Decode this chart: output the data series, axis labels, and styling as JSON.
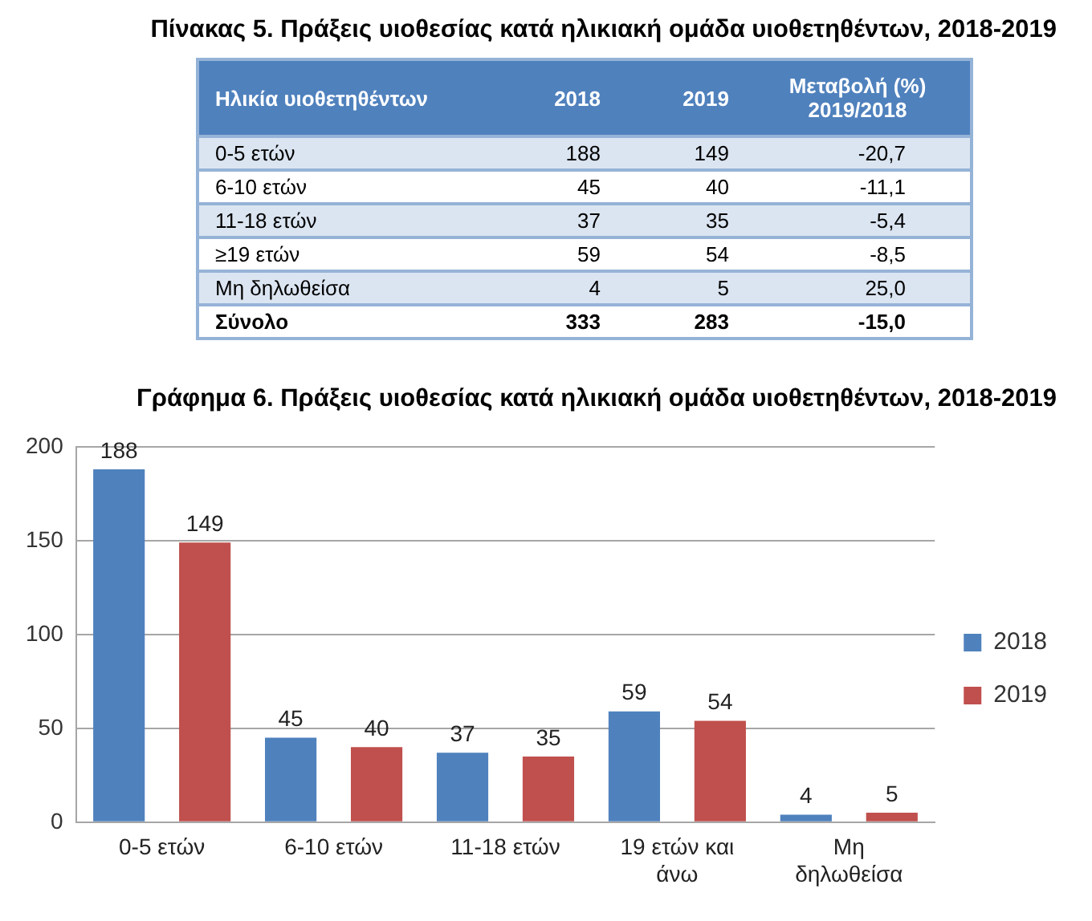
{
  "chart_data": [
    {
      "type": "other",
      "title": "Πίνακας 5. Πράξεις υιοθεσίας κατά ηλικιακή ομάδα υιοθετηθέντων, 2018-2019",
      "xlabel": "Ηλικία υιοθετηθέντων",
      "categories": [
        "0-5 ετών",
        "6-10 ετών",
        "11-18 ετών",
        "≥19 ετών",
        "Μη δηλωθείσα",
        "Σύνολο"
      ],
      "series": [
        {
          "name": "2018",
          "colors": [
            "#dbe5f1",
            "#ffffff",
            "#dbe5f1",
            "#ffffff",
            "#dbe5f1",
            "#ffffff"
          ],
          "values": [
            188,
            45,
            37,
            59,
            4,
            333
          ]
        },
        {
          "name": "2019",
          "values": [
            149,
            40,
            35,
            54,
            5,
            283
          ]
        },
        {
          "name": "Μεταβολή (%) 2019/2018",
          "values": [
            -20.7,
            -11.1,
            -5.4,
            -8.5,
            25.0,
            -15.0
          ],
          "value_labels": [
            "-20,7",
            "-11,1",
            "-5,4",
            "-8,5",
            "25,0",
            "-15,0"
          ]
        }
      ],
      "data_labels": true
    },
    {
      "type": "bar",
      "title": "Γράφημα 6. Πράξεις υιοθεσίας κατά ηλικιακή ομάδα υιοθετηθέντων, 2018-2019",
      "categories": [
        "0-5 ετών",
        "6-10 ετών",
        "11-18 ετών",
        "19 ετών και άνω",
        "Μη δηλωθείσα"
      ],
      "series": [
        {
          "name": "2018",
          "color": "#4f81bd",
          "values": [
            188,
            45,
            37,
            59,
            4
          ]
        },
        {
          "name": "2019",
          "color": "#c0504d",
          "values": [
            149,
            40,
            35,
            54,
            5
          ]
        }
      ],
      "ylim": [
        0,
        200
      ],
      "yticks": [
        0,
        50,
        100,
        150,
        200
      ],
      "grid": "y",
      "legend": "right",
      "data_labels": true
    }
  ]
}
